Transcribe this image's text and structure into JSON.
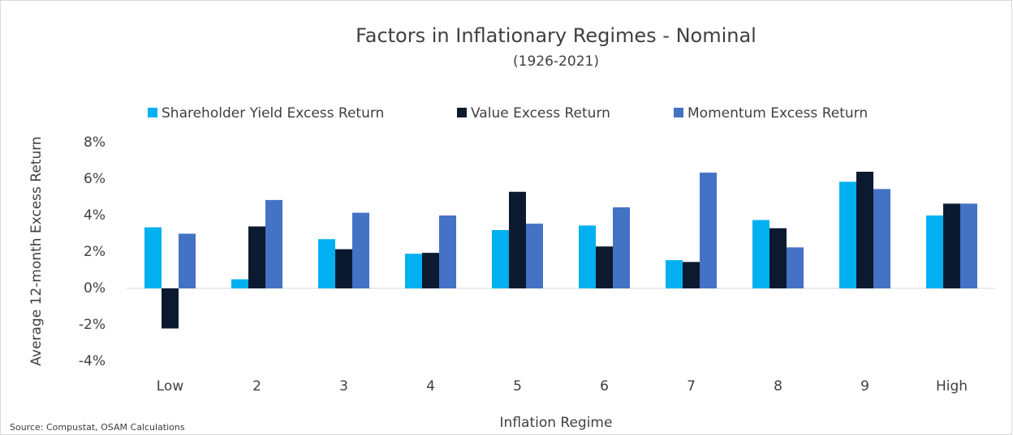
{
  "chart_data": {
    "type": "bar",
    "title": "Factors in Inflationary Regimes - Nominal",
    "subtitle": "(1926-2021)",
    "x_label": "Inflation Regime",
    "y_label": "Average 12-month Excess Return",
    "source": "Source: Compustat, OSAM Calculations",
    "categories": [
      "Low",
      "2",
      "3",
      "4",
      "5",
      "6",
      "7",
      "8",
      "9",
      "High"
    ],
    "series": [
      {
        "name": "Shareholder Yield Excess Return",
        "color": "#00b0f0",
        "values": [
          3.35,
          0.5,
          2.7,
          1.9,
          3.2,
          3.45,
          1.55,
          3.75,
          5.85,
          4.0
        ]
      },
      {
        "name": "Value Excess Return",
        "color": "#0c1a30",
        "values": [
          -2.2,
          3.4,
          2.15,
          1.95,
          5.3,
          2.3,
          1.45,
          3.3,
          6.4,
          4.65
        ]
      },
      {
        "name": "Momentum Excess Return",
        "color": "#4472c4",
        "values": [
          3.0,
          4.85,
          4.15,
          4.0,
          3.55,
          4.45,
          6.35,
          2.25,
          5.45,
          4.65
        ]
      }
    ],
    "ylim": [
      -4,
      8
    ],
    "yticks": [
      {
        "value": -4,
        "label": "-4%"
      },
      {
        "value": -2,
        "label": "-2%"
      },
      {
        "value": 0,
        "label": "0%"
      },
      {
        "value": 2,
        "label": "2%"
      },
      {
        "value": 4,
        "label": "4%"
      },
      {
        "value": 6,
        "label": "6%"
      },
      {
        "value": 8,
        "label": "8%"
      }
    ],
    "legend": "top"
  }
}
